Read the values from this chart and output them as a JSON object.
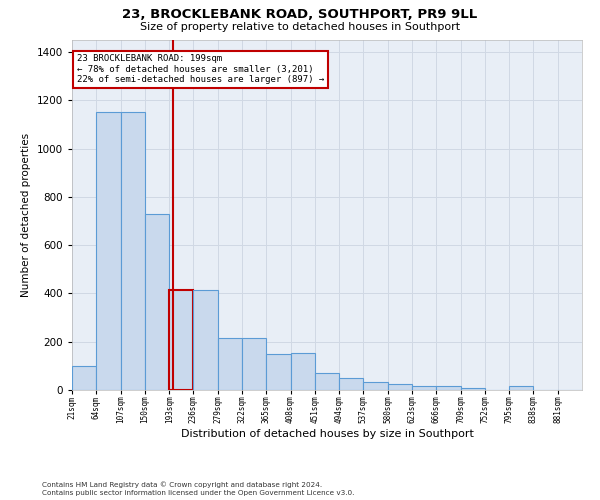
{
  "title1": "23, BROCKLEBANK ROAD, SOUTHPORT, PR9 9LL",
  "title2": "Size of property relative to detached houses in Southport",
  "xlabel": "Distribution of detached houses by size in Southport",
  "ylabel": "Number of detached properties",
  "footnote1": "Contains HM Land Registry data © Crown copyright and database right 2024.",
  "footnote2": "Contains public sector information licensed under the Open Government Licence v3.0.",
  "annotation_line1": "23 BROCKLEBANK ROAD: 199sqm",
  "annotation_line2": "← 78% of detached houses are smaller (3,201)",
  "annotation_line3": "22% of semi-detached houses are larger (897) →",
  "property_size": 199,
  "bar_color": "#c9d9ed",
  "bar_edge_color": "#5b9bd5",
  "highlight_bar_edge_color": "#c00000",
  "vline_color": "#c00000",
  "annotation_box_edge_color": "#c00000",
  "grid_color": "#d0d8e4",
  "background_color": "#e8eef6",
  "bin_edges": [
    21,
    64,
    107,
    150,
    193,
    236,
    279,
    322,
    365,
    408,
    451,
    494,
    537,
    580,
    623,
    666,
    709,
    752,
    795,
    838,
    881
  ],
  "bin_labels": [
    "21sqm",
    "64sqm",
    "107sqm",
    "150sqm",
    "193sqm",
    "236sqm",
    "279sqm",
    "322sqm",
    "365sqm",
    "408sqm",
    "451sqm",
    "494sqm",
    "537sqm",
    "580sqm",
    "623sqm",
    "666sqm",
    "709sqm",
    "752sqm",
    "795sqm",
    "838sqm",
    "881sqm"
  ],
  "counts": [
    100,
    1150,
    1150,
    730,
    415,
    415,
    215,
    215,
    150,
    155,
    70,
    50,
    35,
    25,
    15,
    15,
    10,
    0,
    15,
    0,
    0
  ],
  "ylim": [
    0,
    1450
  ],
  "yticks": [
    0,
    200,
    400,
    600,
    800,
    1000,
    1200,
    1400
  ]
}
